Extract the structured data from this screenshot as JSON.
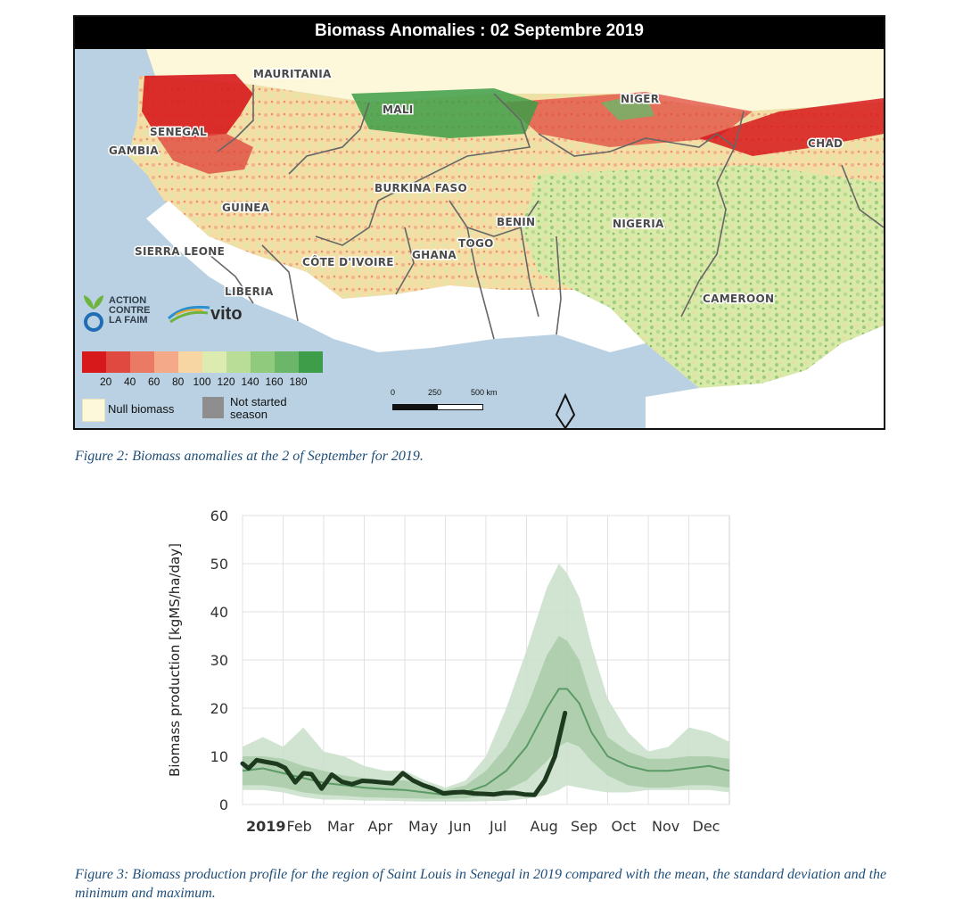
{
  "map": {
    "title": "Biomass Anomalies : 02 Septembre 2019",
    "country_labels": [
      "MAURITANIA",
      "MALI",
      "NIGER",
      "SENEGAL",
      "GAMBIA",
      "CHAD",
      "BURKINA FASO",
      "GUINEA",
      "BENIN",
      "NIGERIA",
      "TOGO",
      "SIERRA LEONE",
      "GHANA",
      "CÔTE D'IVOIRE",
      "LIBERIA",
      "CAMEROON"
    ],
    "logo_acf": "ACTION\nCONTRE\nLA FAIM",
    "logo_vito": "vito",
    "legend": {
      "colors": [
        "#d7191c",
        "#e0493f",
        "#ea7a63",
        "#f4aa88",
        "#f7d6a3",
        "#dcebb0",
        "#b9dd96",
        "#90cb7d",
        "#6bb668",
        "#3e9d48"
      ],
      "ticks": [
        "20",
        "40",
        "60",
        "80",
        "100",
        "120",
        "140",
        "160",
        "180"
      ],
      "null_label": "Null biomass",
      "not_started_label": "Not started season"
    },
    "scale": {
      "labels": [
        "0",
        "250",
        "500 km"
      ]
    }
  },
  "captions": {
    "fig2": "Figure 2: Biomass anomalies at the 2 of September for 2019.",
    "fig3": "Figure 3:  Biomass production profile for the region of Saint Louis in Senegal in 2019 compared with the mean, the standard deviation and the minimum and maximum."
  },
  "chart_data": {
    "type": "area",
    "title": "",
    "xlabel": "",
    "ylabel": "Biomass production [kgMS/ha/day]",
    "ylim": [
      0,
      60
    ],
    "yticks": [
      0,
      10,
      20,
      30,
      40,
      50,
      60
    ],
    "xlim": [
      1,
      13
    ],
    "xticks": [
      {
        "label": "2019",
        "x": 1,
        "bold": true
      },
      {
        "label": "Feb",
        "x": 2
      },
      {
        "label": "Mar",
        "x": 3
      },
      {
        "label": "Apr",
        "x": 4
      },
      {
        "label": "May",
        "x": 5
      },
      {
        "label": "Jun",
        "x": 6
      },
      {
        "label": "Jul",
        "x": 7
      },
      {
        "label": "Aug",
        "x": 8
      },
      {
        "label": "Sep",
        "x": 9
      },
      {
        "label": "Oct",
        "x": 10
      },
      {
        "label": "Nov",
        "x": 11
      },
      {
        "label": "Dec",
        "x": 12
      }
    ],
    "grid": true,
    "colors": {
      "band_minmax": "#c9dfc9",
      "band_std": "#a6c9a6",
      "mean": "#5c9a66",
      "current": "#1d3a1f"
    },
    "series": [
      {
        "name": "min",
        "x": [
          1,
          1.5,
          2,
          2.5,
          3,
          3.5,
          4,
          4.5,
          5,
          5.5,
          6,
          6.5,
          7,
          7.5,
          8,
          8.5,
          8.8,
          9,
          9.3,
          9.6,
          10,
          10.5,
          11,
          11.5,
          12,
          12.5,
          13
        ],
        "values": [
          3,
          3,
          2.5,
          1.5,
          1,
          1,
          0.8,
          0.8,
          0.7,
          0.6,
          0.6,
          0.6,
          0.7,
          0.8,
          1.2,
          2,
          3,
          4,
          3.5,
          3,
          2.5,
          2.5,
          3,
          3,
          3,
          3,
          2.5
        ]
      },
      {
        "name": "max",
        "x": [
          1,
          1.5,
          2,
          2.5,
          3,
          3.5,
          4,
          4.5,
          5,
          5.5,
          6,
          6.5,
          7,
          7.5,
          8,
          8.5,
          8.8,
          9,
          9.3,
          9.6,
          10,
          10.5,
          11,
          11.5,
          12,
          12.5,
          13
        ],
        "values": [
          12,
          14,
          12,
          16,
          11,
          10,
          8,
          7,
          7,
          5,
          3.5,
          5,
          10,
          20,
          32,
          45,
          50,
          48,
          43,
          33,
          22,
          15,
          11,
          12,
          16,
          15,
          13
        ]
      },
      {
        "name": "std_low",
        "x": [
          1,
          1.5,
          2,
          2.5,
          3,
          3.5,
          4,
          4.5,
          5,
          5.5,
          6,
          6.5,
          7,
          7.5,
          8,
          8.5,
          8.8,
          9,
          9.3,
          9.6,
          10,
          10.5,
          11,
          11.5,
          12,
          12.5,
          13
        ],
        "values": [
          4,
          4,
          3.5,
          2.5,
          2,
          1.8,
          1.5,
          1.4,
          1.3,
          1.2,
          1.2,
          1.3,
          1.8,
          3,
          5,
          9,
          12,
          13,
          12,
          9,
          6,
          4,
          3.5,
          3.5,
          4,
          4,
          3.5
        ]
      },
      {
        "name": "std_high",
        "x": [
          1,
          1.5,
          2,
          2.5,
          3,
          3.5,
          4,
          4.5,
          5,
          5.5,
          6,
          6.5,
          7,
          7.5,
          8,
          8.5,
          8.8,
          9,
          9.3,
          9.6,
          10,
          10.5,
          11,
          11.5,
          12,
          12.5,
          13
        ],
        "values": [
          10,
          10,
          9.5,
          8,
          7,
          6,
          5.5,
          5,
          5,
          4,
          3,
          4,
          7,
          12,
          20,
          31,
          35,
          34,
          30,
          22,
          14,
          11,
          9.5,
          9.5,
          10,
          10,
          9.5
        ]
      },
      {
        "name": "mean",
        "x": [
          1,
          1.5,
          2,
          2.5,
          3,
          3.5,
          4,
          4.5,
          5,
          5.5,
          6,
          6.5,
          7,
          7.5,
          8,
          8.5,
          8.8,
          9,
          9.3,
          9.6,
          10,
          10.5,
          11,
          11.5,
          12,
          12.5,
          13
        ],
        "values": [
          7,
          7.5,
          6.5,
          5.5,
          4.5,
          4,
          3.5,
          3.2,
          3,
          2.5,
          2,
          2.5,
          4,
          7,
          12,
          20,
          24,
          24,
          21,
          15,
          10,
          8,
          7,
          7,
          7.5,
          8,
          7
        ]
      },
      {
        "name": "2019",
        "x": [
          1,
          1.15,
          1.35,
          1.6,
          1.85,
          2.05,
          2.3,
          2.5,
          2.7,
          2.95,
          3.2,
          3.45,
          3.7,
          3.95,
          4.2,
          4.45,
          4.7,
          4.95,
          5.2,
          5.45,
          5.7,
          5.95,
          6.2,
          6.45,
          6.7,
          6.95,
          7.2,
          7.45,
          7.7,
          7.95,
          8.2,
          8.45,
          8.7,
          8.95
        ],
        "values": [
          8.5,
          7.5,
          9.2,
          8.8,
          8.4,
          7.6,
          4.6,
          6.5,
          6.3,
          3.3,
          6.2,
          4.7,
          4.2,
          4.9,
          4.8,
          4.6,
          4.4,
          6.5,
          5.0,
          4.0,
          3.3,
          2.3,
          2.5,
          2.6,
          2.3,
          2.2,
          2.1,
          2.4,
          2.4,
          2.1,
          2.0,
          5.0,
          10,
          19
        ]
      }
    ]
  }
}
